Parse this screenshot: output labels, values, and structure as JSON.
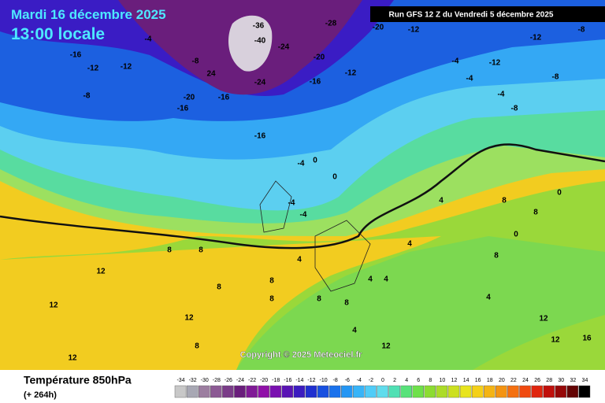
{
  "header": {
    "date": "Mardi 16 décembre 2025",
    "time": "13:00 locale",
    "run": "Run GFS 12 Z du Vendredi 5 décembre 2025"
  },
  "copyright": "Copyright © 2025 Meteociel.fr",
  "footer": {
    "title": "Température 850hPa",
    "lead": "(+ 264h)"
  },
  "legend": {
    "ticks": [
      -34,
      -32,
      -30,
      -28,
      -26,
      -24,
      -22,
      -20,
      -18,
      -16,
      -14,
      -12,
      -10,
      -8,
      -6,
      -4,
      -2,
      0,
      2,
      4,
      6,
      8,
      10,
      12,
      14,
      16,
      18,
      20,
      22,
      24,
      26,
      28,
      30,
      32,
      34
    ],
    "colors": [
      "#c8c8c8",
      "#a8a8b4",
      "#9c7ea0",
      "#8c5a94",
      "#7a3c88",
      "#6a1e7c",
      "#801a96",
      "#9010a8",
      "#7a10b0",
      "#5a14b4",
      "#3c1cc0",
      "#2030d0",
      "#1850e0",
      "#1a72ec",
      "#2496f4",
      "#38b4f8",
      "#50ccf8",
      "#60dcec",
      "#50e0b4",
      "#58e27a",
      "#6ee04a",
      "#8cdc32",
      "#acdc28",
      "#cce020",
      "#e8e41c",
      "#f4d018",
      "#f4b414",
      "#f49412",
      "#f47010",
      "#f04a10",
      "#e0260e",
      "#c0100c",
      "#960808",
      "#640404",
      "#000000"
    ]
  },
  "map_labels": [
    -16,
    -12,
    -12,
    -8,
    -4,
    -8,
    24,
    -20,
    -16,
    -16,
    -36,
    -40,
    -24,
    -24,
    -28,
    -20,
    -16,
    -12,
    -20,
    -12,
    -4,
    -12,
    -12,
    -8,
    -8,
    -4,
    -4,
    -8,
    -16,
    -4,
    0,
    -4,
    -4,
    0,
    8,
    8,
    4,
    12,
    8,
    8,
    8,
    8,
    8,
    4,
    4,
    4,
    4,
    8,
    8,
    8,
    4,
    12,
    16,
    12,
    12,
    12,
    8,
    4,
    12,
    12,
    0,
    0
  ]
}
